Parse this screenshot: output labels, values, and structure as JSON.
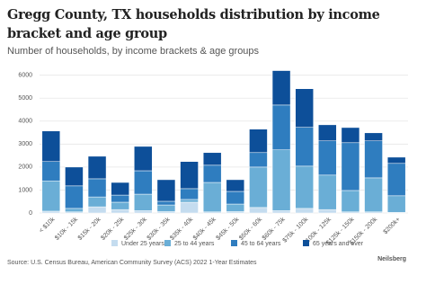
{
  "chart_data": {
    "type": "stacked_bar",
    "title": "Gregg County, TX households distribution by income bracket and age group",
    "subtitle": "Number of households, by income brackets & age groups",
    "categories": [
      "< $10k",
      "$10k - 15k",
      "$15k - 20k",
      "$20k - 25k",
      "$25k - 30k",
      "$30k - 35k",
      "$35k - 40k",
      "$40k - 45k",
      "$45k - 50k",
      "$50k - 60k",
      "$60k - 75k",
      "$75k - 100k",
      "$100k - 125k",
      "$125k - 150k",
      "$150k - 200k",
      "$200k+"
    ],
    "series": [
      {
        "name": "Under 25 years",
        "color": "#c4dcef",
        "values": [
          80,
          50,
          270,
          150,
          100,
          60,
          470,
          50,
          60,
          240,
          100,
          200,
          150,
          50,
          50,
          30
        ]
      },
      {
        "name": "25 to 44 years",
        "color": "#6aaed6",
        "values": [
          1320,
          150,
          430,
          320,
          720,
          290,
          120,
          1280,
          330,
          1760,
          2650,
          1840,
          1500,
          930,
          1480,
          720
        ]
      },
      {
        "name": "45 to 64 years",
        "color": "#2f7dbf",
        "values": [
          840,
          980,
          790,
          310,
          1020,
          160,
          470,
          750,
          550,
          630,
          1950,
          1690,
          1490,
          2080,
          1610,
          1410
        ]
      },
      {
        "name": "65 years and over",
        "color": "#0d4f99",
        "values": [
          1330,
          820,
          980,
          550,
          1060,
          940,
          1180,
          550,
          510,
          1020,
          1500,
          1680,
          700,
          660,
          350,
          270
        ]
      }
    ],
    "ylim": [
      0,
      6300
    ],
    "yticks": [
      0,
      1000,
      2000,
      3000,
      4000,
      5000,
      6000
    ],
    "grid": true,
    "source": "Source: U.S. Census Bureau, American Community Survey (ACS) 2022 1-Year Estimates",
    "brand": "Neilsberg"
  }
}
